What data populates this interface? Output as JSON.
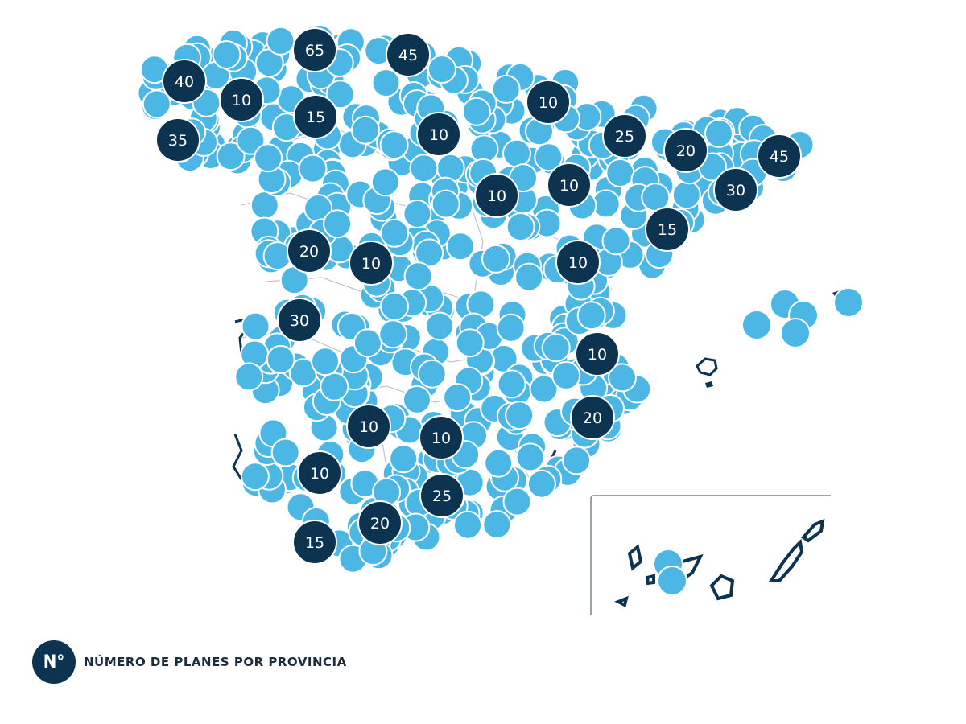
{
  "colors": {
    "marker": "#4cb7e4",
    "badge": "#0c3350",
    "border": "#bfc5cb",
    "coast": "#0c3350",
    "background": "#ffffff"
  },
  "legend": {
    "symbol": "N°",
    "label": "NÚMERO DE PLANES POR PROVINCIA"
  },
  "provinces": [
    {
      "value": "40"
    },
    {
      "value": "65"
    },
    {
      "value": "45"
    },
    {
      "value": "10"
    },
    {
      "value": "15"
    },
    {
      "value": "35"
    },
    {
      "value": "10"
    },
    {
      "value": "10"
    },
    {
      "value": "25"
    },
    {
      "value": "20"
    },
    {
      "value": "45"
    },
    {
      "value": "10"
    },
    {
      "value": "10"
    },
    {
      "value": "30"
    },
    {
      "value": "15"
    },
    {
      "value": "20"
    },
    {
      "value": "10"
    },
    {
      "value": "10"
    },
    {
      "value": "30"
    },
    {
      "value": "10"
    },
    {
      "value": "20"
    },
    {
      "value": "10"
    },
    {
      "value": "10"
    },
    {
      "value": "10"
    },
    {
      "value": "25"
    },
    {
      "value": "20"
    },
    {
      "value": "15"
    }
  ]
}
